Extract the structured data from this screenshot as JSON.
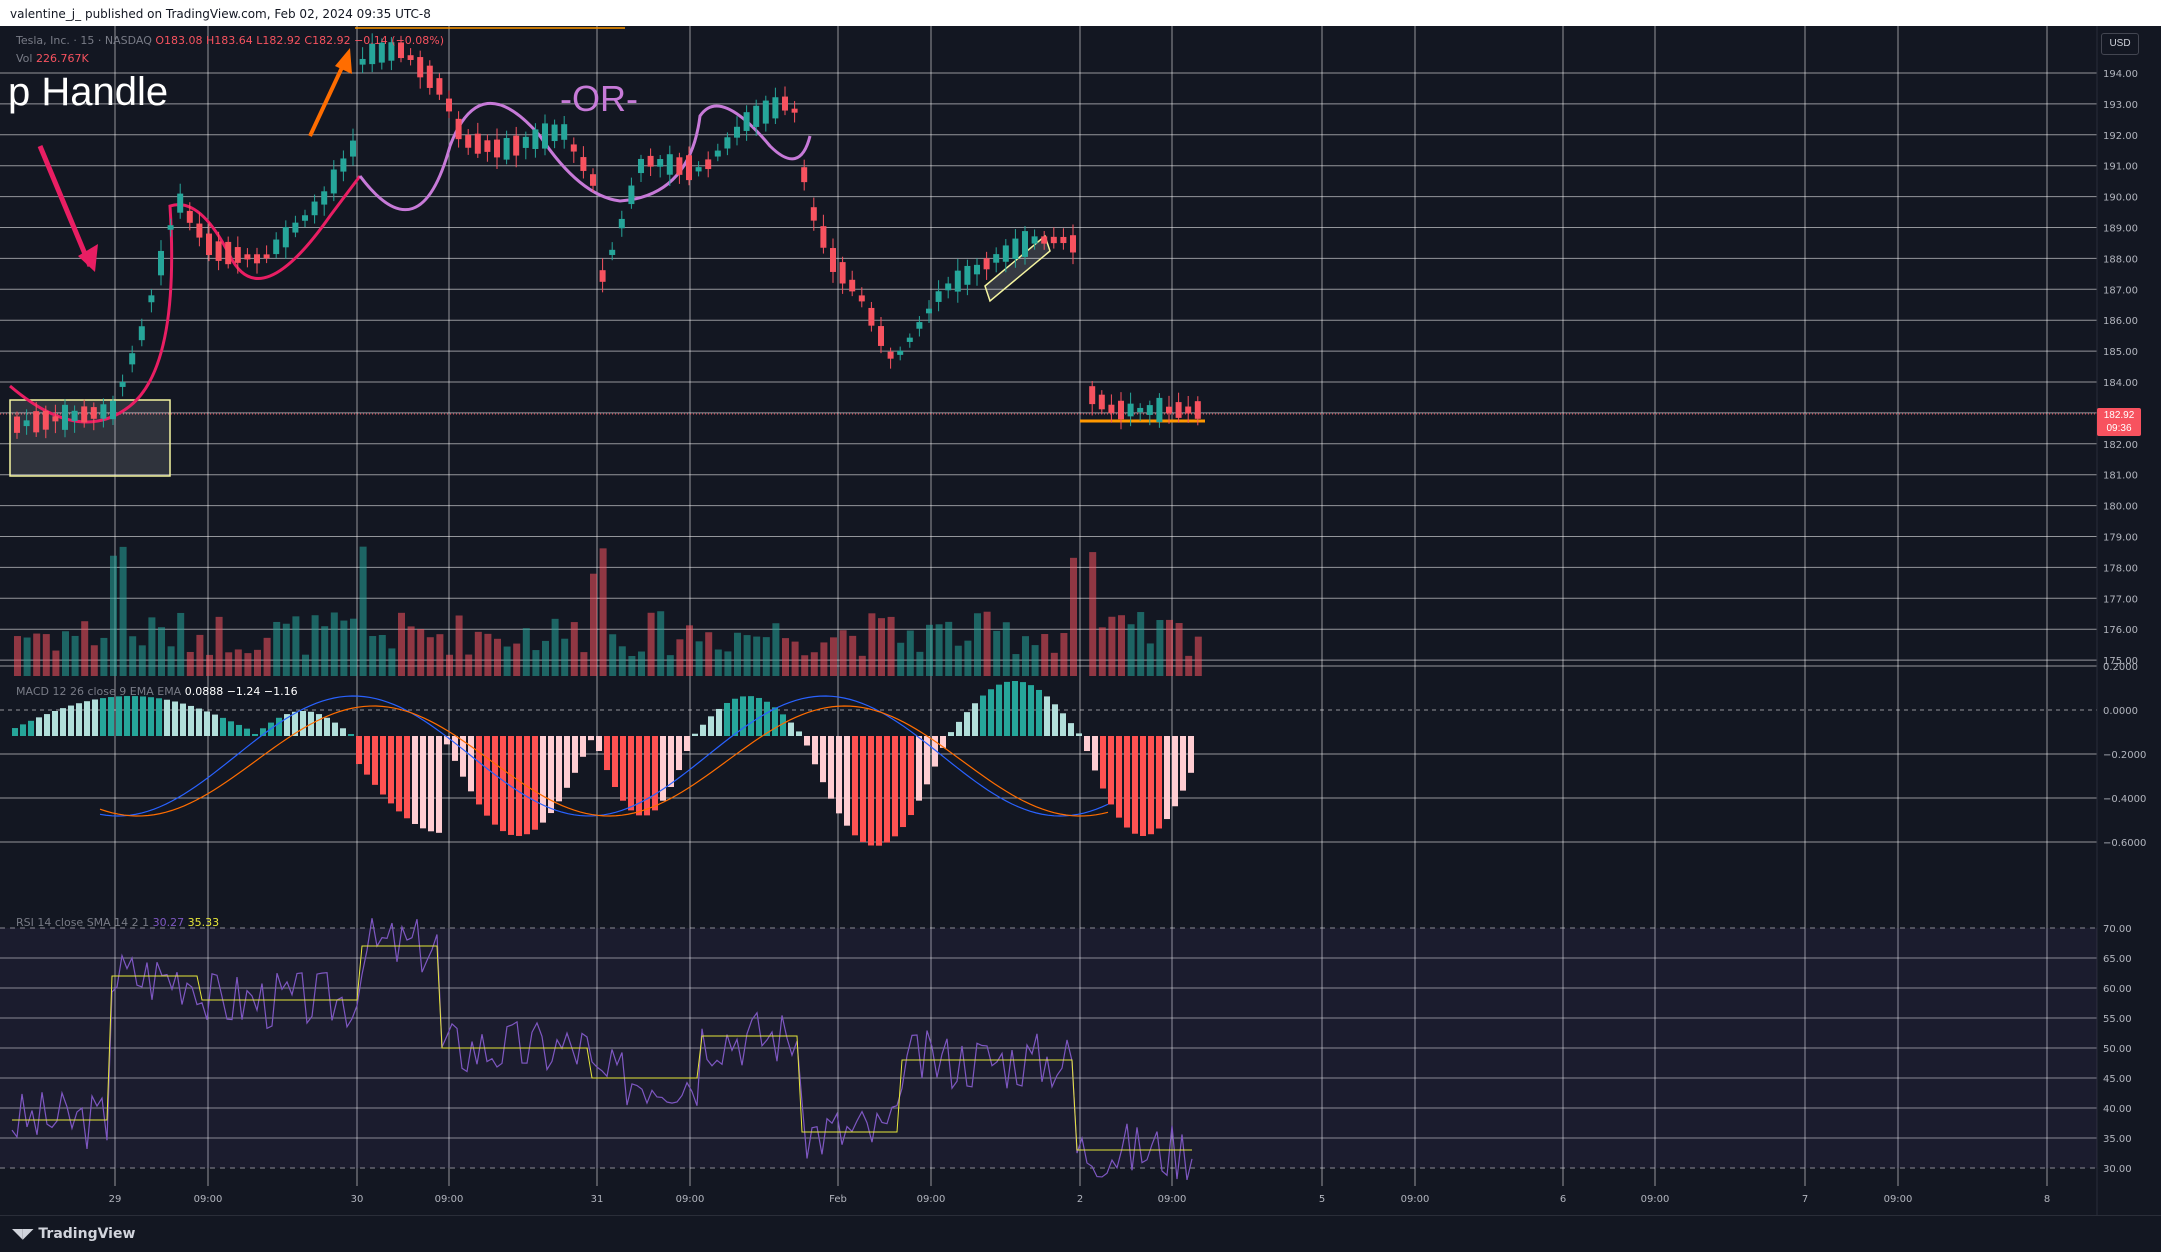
{
  "header": {
    "publisher": "valentine_j_ published on TradingView.com, Feb 02, 2024 09:35 UTC-8"
  },
  "symbol_legend": {
    "name": "Tesla, Inc. · 15 · NASDAQ",
    "ohlc": "O183.08 H183.64 L182.92 C182.92 −0.14 (−0.08%)"
  },
  "volume_legend": {
    "label": "Vol",
    "value": "226.767K"
  },
  "macd_legend": {
    "label": "MACD 12 26 close 9 EMA EMA",
    "values": "0.0888  −1.24  −1.16"
  },
  "rsi_legend": {
    "label": "RSI 14 close SMA 14 2 1",
    "value": "30.27",
    "sma": "35.33"
  },
  "annotations": {
    "title": "p Handle",
    "or": "-OR-"
  },
  "price_axis": {
    "currency": "USD",
    "current_price": "182.92",
    "countdown": "09:36",
    "labels": [
      "194.00",
      "193.00",
      "192.00",
      "191.00",
      "190.00",
      "189.00",
      "188.00",
      "187.00",
      "186.00",
      "185.00",
      "184.00",
      "183.00",
      "182.00",
      "181.00",
      "180.00",
      "179.00",
      "178.00",
      "177.00",
      "176.00",
      "175.00"
    ],
    "macd_labels": [
      "0.2000",
      "0.0000",
      "−0.2000",
      "−0.4000",
      "−0.6000"
    ],
    "rsi_labels": [
      "70.00",
      "65.00",
      "60.00",
      "55.00",
      "50.00",
      "45.00",
      "40.00",
      "35.00",
      "30.00"
    ]
  },
  "time_axis": {
    "labels": [
      "29",
      "09:00",
      "30",
      "09:00",
      "31",
      "09:00",
      "Feb",
      "09:00",
      "2",
      "09:00",
      "5",
      "09:00",
      "6",
      "09:00",
      "7",
      "09:00",
      "8"
    ]
  },
  "footer": {
    "brand": "TradingView"
  },
  "colors": {
    "up": "#26a69a",
    "down": "#f7525f",
    "bg": "#131722",
    "grid": "#ffffff"
  }
}
